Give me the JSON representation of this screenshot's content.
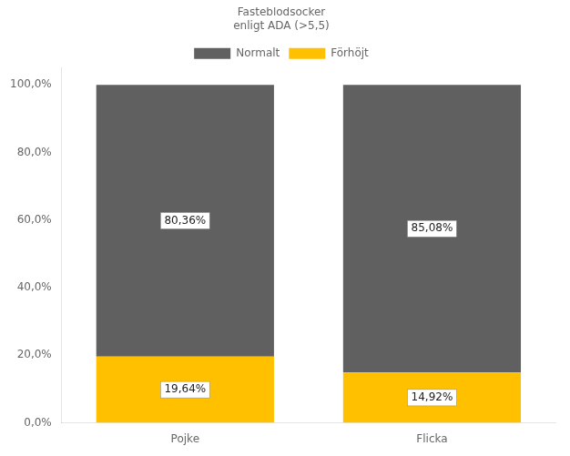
{
  "chart_data": {
    "type": "bar",
    "stacked": true,
    "categories": [
      "Pojke",
      "Flicka"
    ],
    "series": [
      {
        "name": "Förhöjt",
        "color": "#FFC000",
        "values": [
          19.64,
          14.92
        ],
        "value_labels": [
          "19,64%",
          "14,92%"
        ]
      },
      {
        "name": "Normalt",
        "color": "#606060",
        "values": [
          80.36,
          85.08
        ],
        "value_labels": [
          "80,36%",
          "85,08%"
        ]
      }
    ],
    "legend_title": "Fasteblodsocker\nenligt ADA (>5,5)",
    "legend": "top",
    "ylim": [
      0,
      105
    ],
    "yticks": [
      {
        "value": 0,
        "label": "0,0%"
      },
      {
        "value": 20,
        "label": "20,0%"
      },
      {
        "value": 40,
        "label": "40,0%"
      },
      {
        "value": 60,
        "label": "60,0%"
      },
      {
        "value": 80,
        "label": "80,0%"
      },
      {
        "value": 100,
        "label": "100,0%"
      }
    ],
    "grid": false,
    "data_labels": true
  }
}
